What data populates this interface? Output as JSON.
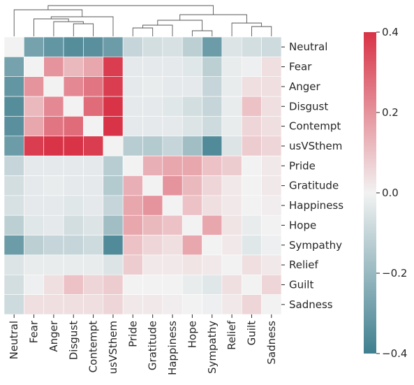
{
  "chart_data": {
    "type": "heatmap",
    "variant": "clustermap",
    "labels": [
      "Neutral",
      "Fear",
      "Anger",
      "Disgust",
      "Contempt",
      "usVSthem",
      "Pride",
      "Gratitude",
      "Happiness",
      "Hope",
      "Sympathy",
      "Relief",
      "Guilt",
      "Sadness"
    ],
    "values": [
      [
        0.0,
        -0.28,
        -0.32,
        -0.35,
        -0.34,
        -0.3,
        -0.1,
        -0.07,
        -0.06,
        -0.12,
        -0.3,
        -0.05,
        -0.07,
        -0.08
      ],
      [
        -0.28,
        0.0,
        0.2,
        0.12,
        0.16,
        0.38,
        -0.03,
        -0.03,
        -0.03,
        -0.04,
        -0.12,
        -0.02,
        -0.01,
        0.04
      ],
      [
        -0.32,
        0.2,
        0.0,
        0.22,
        0.26,
        0.38,
        -0.03,
        -0.02,
        -0.03,
        -0.03,
        -0.1,
        -0.02,
        0.04,
        0.04
      ],
      [
        -0.35,
        0.12,
        0.22,
        0.0,
        0.28,
        0.4,
        -0.03,
        -0.03,
        -0.04,
        -0.07,
        -0.1,
        -0.02,
        0.1,
        0.04
      ],
      [
        -0.34,
        0.16,
        0.26,
        0.28,
        0.0,
        0.4,
        -0.03,
        -0.03,
        -0.03,
        -0.05,
        -0.08,
        -0.02,
        0.06,
        0.04
      ],
      [
        -0.3,
        0.38,
        0.4,
        0.4,
        0.38,
        0.0,
        -0.13,
        -0.14,
        -0.1,
        -0.18,
        -0.36,
        -0.05,
        0.08,
        0.06
      ],
      [
        -0.1,
        -0.03,
        -0.03,
        -0.03,
        -0.03,
        -0.13,
        0.0,
        0.14,
        0.16,
        0.16,
        0.1,
        0.08,
        0.0,
        0.02
      ],
      [
        -0.07,
        -0.03,
        -0.02,
        -0.03,
        -0.03,
        -0.14,
        0.14,
        0.0,
        0.2,
        0.12,
        0.06,
        0.02,
        0.0,
        0.02
      ],
      [
        -0.06,
        -0.03,
        -0.03,
        -0.04,
        -0.03,
        -0.1,
        0.16,
        0.2,
        0.0,
        0.1,
        0.04,
        0.02,
        0.0,
        0.01
      ],
      [
        -0.12,
        -0.04,
        -0.03,
        -0.07,
        -0.05,
        -0.18,
        0.16,
        0.12,
        0.1,
        0.0,
        0.16,
        0.03,
        -0.02,
        0.0
      ],
      [
        -0.3,
        -0.12,
        -0.1,
        -0.1,
        -0.08,
        -0.36,
        0.1,
        0.06,
        0.04,
        0.16,
        0.0,
        0.02,
        -0.04,
        -0.01
      ],
      [
        -0.05,
        -0.02,
        -0.02,
        -0.02,
        -0.02,
        -0.05,
        0.08,
        0.02,
        0.02,
        0.03,
        0.02,
        0.0,
        0.04,
        0.02
      ],
      [
        -0.07,
        -0.01,
        0.04,
        0.1,
        0.06,
        0.08,
        0.0,
        0.0,
        0.0,
        -0.02,
        -0.04,
        0.04,
        0.0,
        0.06
      ],
      [
        -0.08,
        0.04,
        0.04,
        0.04,
        0.04,
        0.06,
        0.02,
        0.02,
        0.01,
        0.0,
        -0.01,
        0.02,
        0.06,
        0.0
      ]
    ],
    "colorbar": {
      "ticks": [
        "0.4",
        "0.2",
        "0.0",
        "−0.2",
        "−0.4"
      ],
      "range": [
        -0.4,
        0.4
      ]
    },
    "colors": {
      "negative": "#3f7f8f",
      "center": "#f2f2f2",
      "positive": "#d83346"
    }
  }
}
